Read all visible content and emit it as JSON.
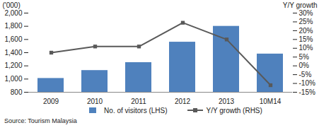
{
  "chart_data": {
    "type": "bar",
    "categories": [
      "2009",
      "2010",
      "2011",
      "2012",
      "2013",
      "10M14"
    ],
    "ylabel": "('000)",
    "y2label": "Y/Y growth",
    "caption": "Source: Tourism Malaysia",
    "ylim": [
      800,
      2000
    ],
    "yticks": [
      800,
      {
        "value": 1000,
        "label": "1,000"
      },
      {
        "value": 1200,
        "label": "1,200"
      },
      {
        "value": 1400,
        "label": "1,400"
      },
      {
        "value": 1600,
        "label": "1,600"
      },
      {
        "value": 1800,
        "label": "1,800"
      },
      {
        "value": 2000,
        "label": "2,000"
      }
    ],
    "y2lim": [
      -15,
      30
    ],
    "y2ticks": [
      {
        "value": -15,
        "label": "-15%"
      },
      {
        "value": -10,
        "label": "-10%"
      },
      {
        "value": -5,
        "label": "-5%"
      },
      {
        "value": 0,
        "label": "0%"
      },
      {
        "value": 5,
        "label": "5%"
      },
      {
        "value": 10,
        "label": "10%"
      },
      {
        "value": 15,
        "label": "15%"
      },
      {
        "value": 20,
        "label": "20%"
      },
      {
        "value": 25,
        "label": "25%"
      },
      {
        "value": 30,
        "label": "30%"
      }
    ],
    "legend": "bottom",
    "grid": false,
    "series": [
      {
        "name": "No. of visitors (LHS)",
        "type": "bar",
        "color": "#4f81bd",
        "values": [
          1010,
          1130,
          1250,
          1560,
          1800,
          1380
        ]
      },
      {
        "name": "Y/Y growth (RHS)",
        "type": "line",
        "axis": "y2",
        "color": "#595959",
        "marker": "square",
        "values": [
          7.5,
          11,
          11,
          24.5,
          15,
          -11
        ]
      }
    ]
  }
}
